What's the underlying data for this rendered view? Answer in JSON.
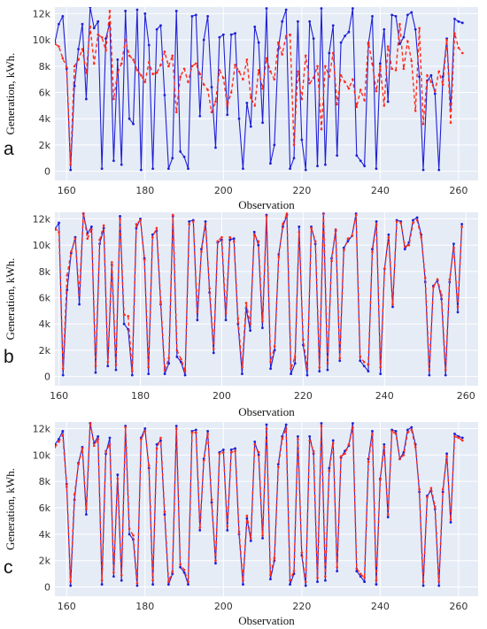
{
  "colors": {
    "plot_bg": "#e5ecf6",
    "grid": "#ffffff",
    "actual": "#1f1fd6",
    "predicted": "#ff2a1a"
  },
  "chart_data": [
    {
      "type": "line",
      "panel_label": "a",
      "xlabel": "Observation",
      "ylabel": "Generation, kWh.",
      "xlim": [
        157,
        265
      ],
      "ylim": [
        -700,
        12500
      ],
      "xticks": [
        160,
        180,
        200,
        220,
        240,
        260
      ],
      "yticks": [
        0,
        2000,
        4000,
        6000,
        8000,
        10000,
        12000
      ],
      "ytick_labels": [
        "0",
        "2k",
        "4k",
        "6k",
        "8k",
        "10k",
        "12k"
      ],
      "grid": true,
      "legend": "none",
      "series": [
        {
          "style": "solid",
          "x_start": 157,
          "values": [
            9800,
            11200,
            11800,
            7800,
            100,
            6500,
            9300,
            11200,
            5500,
            12500,
            10900,
            11400,
            200,
            10100,
            11300,
            800,
            8500,
            500,
            12200,
            4000,
            3600,
            12300,
            100,
            12000,
            9600,
            200,
            10800,
            11100,
            5800,
            200,
            1000,
            12200,
            1500,
            1100,
            200,
            11800,
            11900,
            4200,
            10000,
            11800,
            6400,
            1800,
            10200,
            10400,
            4300,
            10400,
            10500,
            4000,
            200,
            5200,
            3400,
            11000,
            9800,
            3700,
            12400,
            600,
            2000,
            9300,
            11400,
            12300,
            200,
            1000,
            11400,
            2400,
            100,
            11400,
            10100,
            400,
            12400,
            500,
            9000,
            11100,
            1200,
            9800,
            10300,
            10600,
            12400,
            1200,
            800,
            400,
            9700,
            11800,
            200,
            8200,
            10800,
            5300,
            11900,
            11800,
            9700,
            10200,
            11900,
            12100,
            10800,
            7200,
            100,
            6900,
            7300,
            5900,
            100,
            7200,
            10100,
            4700,
            11600,
            11400,
            11300
          ]
        },
        {
          "style": "dashed",
          "x_start": 157,
          "values": [
            9700,
            9500,
            8600,
            7900,
            500,
            8000,
            8500,
            9300,
            7500,
            11000,
            8200,
            10400,
            10200,
            9200,
            12200,
            5500,
            7500,
            8200,
            10000,
            8800,
            8500,
            7700,
            7300,
            6800,
            8300,
            7400,
            7500,
            8100,
            9100,
            8000,
            8800,
            4500,
            7200,
            7800,
            6800,
            8000,
            8200,
            7400,
            6600,
            6200,
            4500,
            5300,
            7700,
            7100,
            5000,
            6000,
            8100,
            7600,
            7000,
            8500,
            5600,
            5000,
            7700,
            6300,
            8600,
            7600,
            7000,
            9800,
            8900,
            10300,
            10400,
            2000,
            7600,
            5500,
            8800,
            6700,
            7100,
            8000,
            3200,
            8000,
            7200,
            9000,
            5100,
            7300,
            6800,
            6300,
            7000,
            4900,
            6200,
            5400,
            9800,
            8200,
            6100,
            8000,
            5000,
            9500,
            7800,
            7700,
            11200,
            7800,
            9900,
            8400,
            4600,
            10900,
            3600,
            7300,
            6800,
            6100,
            7600,
            6600,
            10000,
            3700,
            10500,
            9400,
            9000
          ],
          "segments_note": ""
        }
      ]
    },
    {
      "type": "line",
      "panel_label": "b",
      "xlabel": "Observation",
      "ylabel": "Generation, kWh.",
      "xlim": [
        159,
        263
      ],
      "ylim": [
        -700,
        12500
      ],
      "xticks": [
        160,
        180,
        200,
        220,
        240,
        260
      ],
      "yticks": [
        0,
        2000,
        4000,
        6000,
        8000,
        10000,
        12000
      ],
      "ytick_labels": [
        "0",
        "2k",
        "4k",
        "6k",
        "8k",
        "10k",
        "12k"
      ],
      "grid": true,
      "legend": "none",
      "series": [
        {
          "style": "solid",
          "x_start": 159,
          "values": [
            11200,
            11700,
            100,
            6600,
            9400,
            10600,
            5500,
            12400,
            10900,
            11400,
            300,
            10100,
            11300,
            800,
            8500,
            500,
            12200,
            4000,
            3600,
            100,
            11300,
            12000,
            9000,
            200,
            10800,
            11100,
            5500,
            200,
            1000,
            12200,
            1500,
            1100,
            100,
            11800,
            11900,
            4300,
            9700,
            11800,
            6400,
            1800,
            10200,
            10400,
            4300,
            10400,
            10500,
            4000,
            200,
            5200,
            3500,
            11000,
            10000,
            3700,
            12300,
            600,
            2000,
            9300,
            11400,
            12300,
            200,
            1000,
            11400,
            2400,
            100,
            11400,
            10100,
            400,
            12400,
            500,
            9000,
            11100,
            1200,
            9800,
            10300,
            10700,
            12400,
            1200,
            800,
            400,
            9700,
            11800,
            200,
            8200,
            10800,
            5300,
            11900,
            11800,
            9700,
            10200,
            11900,
            12100,
            10800,
            7200,
            100,
            6900,
            7300,
            5900,
            100,
            7200,
            10100,
            4900,
            11600
          ]
        },
        {
          "style": "dashed",
          "x_start": 159,
          "values": [
            11300,
            11000,
            600,
            7700,
            9500,
            10500,
            6200,
            12500,
            10500,
            11200,
            800,
            10400,
            11500,
            1100,
            8700,
            900,
            12000,
            4700,
            4600,
            400,
            11600,
            11900,
            8900,
            700,
            10600,
            11300,
            5700,
            500,
            1400,
            12300,
            2000,
            1300,
            400,
            11600,
            11800,
            4900,
            9500,
            11600,
            6700,
            2100,
            10300,
            10600,
            4800,
            10600,
            10300,
            4400,
            700,
            5600,
            4000,
            10800,
            10300,
            4200,
            12200,
            1100,
            2300,
            9100,
            11600,
            12400,
            600,
            1500,
            11000,
            2800,
            600,
            11300,
            10300,
            700,
            12600,
            1000,
            8800,
            11200,
            1400,
            9600,
            10500,
            10700,
            12300,
            1500,
            1100,
            900,
            9500,
            11600,
            700,
            8200,
            10600,
            5500,
            11800,
            11700,
            9900,
            10000,
            11700,
            11900,
            10600,
            7500,
            500,
            6800,
            7400,
            6200,
            500,
            7400,
            9800,
            5300,
            11400
          ]
        }
      ]
    },
    {
      "type": "line",
      "panel_label": "c",
      "xlabel": "Observation",
      "ylabel": "Generation, kWh.",
      "xlim": [
        157,
        265
      ],
      "ylim": [
        -700,
        12500
      ],
      "xticks": [
        160,
        180,
        200,
        220,
        240,
        260
      ],
      "yticks": [
        0,
        2000,
        4000,
        6000,
        8000,
        10000,
        12000
      ],
      "ytick_labels": [
        "0",
        "2k",
        "4k",
        "6k",
        "8k",
        "10k",
        "12k"
      ],
      "grid": true,
      "legend": "none",
      "series": [
        {
          "style": "solid",
          "x_start": 157,
          "values": [
            10800,
            11200,
            11800,
            7800,
            100,
            6600,
            9400,
            10600,
            5500,
            12400,
            10900,
            11400,
            200,
            10100,
            11300,
            800,
            8500,
            500,
            12200,
            4000,
            3600,
            100,
            11300,
            12000,
            9000,
            200,
            10800,
            11100,
            5500,
            200,
            1000,
            12200,
            1500,
            1100,
            200,
            11800,
            11900,
            4300,
            9700,
            11800,
            6400,
            1800,
            10200,
            10400,
            4300,
            10400,
            10500,
            4000,
            200,
            5200,
            3500,
            11000,
            10000,
            3700,
            12300,
            600,
            2000,
            9300,
            11400,
            12300,
            200,
            1000,
            11400,
            2400,
            100,
            11400,
            10100,
            400,
            12400,
            500,
            9000,
            11100,
            1200,
            9800,
            10300,
            10700,
            12400,
            1200,
            800,
            400,
            9700,
            11800,
            200,
            8200,
            10800,
            5300,
            11900,
            11800,
            9700,
            10200,
            11900,
            12100,
            10800,
            7200,
            100,
            6900,
            7300,
            5900,
            100,
            7200,
            10100,
            4900,
            11600,
            11400,
            11300
          ]
        },
        {
          "style": "dashed",
          "x_start": 157,
          "values": [
            10600,
            11000,
            11500,
            7600,
            400,
            7000,
            9300,
            10500,
            5900,
            12500,
            10700,
            11200,
            500,
            10300,
            10800,
            1100,
            8200,
            900,
            12100,
            4400,
            3900,
            300,
            11200,
            11800,
            9200,
            500,
            10500,
            11300,
            5700,
            400,
            1200,
            12000,
            1700,
            1300,
            400,
            11700,
            11700,
            4500,
            9600,
            11600,
            6600,
            2000,
            10100,
            10200,
            4600,
            10200,
            10300,
            4200,
            500,
            5400,
            3700,
            10800,
            10200,
            3900,
            12000,
            900,
            2200,
            9100,
            11200,
            12000,
            500,
            1200,
            11200,
            2600,
            400,
            11100,
            10300,
            700,
            12200,
            800,
            8800,
            10900,
            1500,
            9900,
            10100,
            10800,
            12100,
            1400,
            1000,
            700,
            9500,
            11600,
            500,
            8100,
            10600,
            5500,
            11800,
            11600,
            9700,
            10000,
            11700,
            11900,
            10600,
            7400,
            400,
            6800,
            7500,
            6100,
            400,
            7400,
            9900,
            5100,
            11400,
            11300,
            11100
          ]
        }
      ]
    }
  ]
}
